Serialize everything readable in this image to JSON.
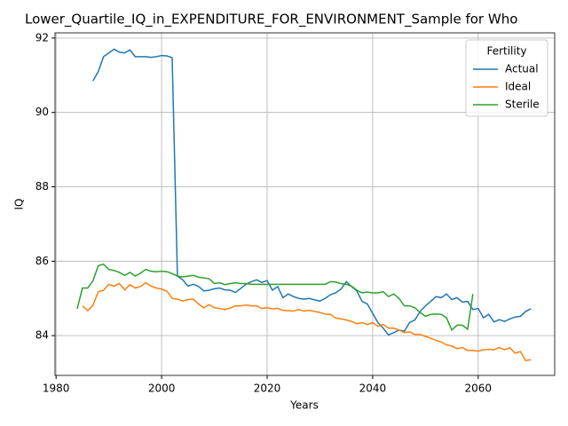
{
  "chart_data": {
    "type": "line",
    "title": "Lower_Quartile_IQ_in_EXPENDITURE_FOR_ENVIRONMENT_Sample for Who",
    "x_label": "Years",
    "y_label": "IQ",
    "x": [
      1984,
      1985,
      1986,
      1987,
      1988,
      1989,
      1990,
      1991,
      1992,
      1993,
      1994,
      1995,
      1996,
      1997,
      1998,
      1999,
      2000,
      2001,
      2002,
      2003,
      2004,
      2005,
      2006,
      2007,
      2008,
      2009,
      2010,
      2011,
      2012,
      2013,
      2014,
      2015,
      2016,
      2017,
      2018,
      2019,
      2020,
      2021,
      2022,
      2023,
      2024,
      2025,
      2026,
      2027,
      2028,
      2029,
      2030,
      2031,
      2032,
      2033,
      2034,
      2035,
      2036,
      2037,
      2038,
      2039,
      2040,
      2041,
      2042,
      2043,
      2044,
      2045,
      2046,
      2047,
      2048,
      2049,
      2050,
      2051,
      2052,
      2053,
      2054,
      2055,
      2056,
      2057,
      2058,
      2059,
      2060,
      2061,
      2062,
      2063,
      2064,
      2065,
      2066,
      2067,
      2068,
      2069,
      2070
    ],
    "series": [
      {
        "name": "Actual",
        "color": "#1f77b4",
        "values": [
          null,
          null,
          null,
          90.85,
          91.1,
          91.5,
          91.6,
          91.7,
          91.62,
          91.6,
          91.68,
          91.5,
          91.5,
          91.5,
          91.48,
          91.5,
          91.53,
          91.52,
          91.47,
          85.6,
          85.5,
          85.33,
          85.38,
          85.32,
          85.2,
          85.22,
          85.26,
          85.28,
          85.23,
          85.22,
          85.16,
          85.27,
          85.38,
          85.45,
          85.5,
          85.43,
          85.48,
          85.22,
          85.32,
          85.02,
          85.12,
          85.05,
          85.0,
          84.98,
          85.0,
          84.96,
          84.93,
          85.0,
          85.1,
          85.15,
          85.25,
          85.45,
          85.32,
          85.2,
          84.92,
          84.85,
          84.6,
          84.35,
          84.2,
          84.02,
          84.08,
          84.15,
          84.12,
          84.35,
          84.42,
          84.65,
          84.8,
          84.92,
          85.05,
          85.02,
          85.12,
          84.97,
          85.02,
          84.9,
          84.92,
          84.7,
          84.73,
          84.48,
          84.57,
          84.37,
          84.43,
          84.38,
          84.45,
          84.5,
          84.52,
          84.65,
          84.72
        ]
      },
      {
        "name": "Ideal",
        "color": "#ff7f0e",
        "values": [
          null,
          84.8,
          84.67,
          84.82,
          85.18,
          85.22,
          85.38,
          85.33,
          85.4,
          85.23,
          85.37,
          85.28,
          85.32,
          85.42,
          85.33,
          85.28,
          85.25,
          85.2,
          85.0,
          84.98,
          84.93,
          84.97,
          84.98,
          84.85,
          84.75,
          84.83,
          84.75,
          84.73,
          84.7,
          84.74,
          84.8,
          84.8,
          84.82,
          84.8,
          84.8,
          84.73,
          84.75,
          84.72,
          84.73,
          84.68,
          84.67,
          84.66,
          84.7,
          84.66,
          84.68,
          84.65,
          84.62,
          84.58,
          84.57,
          84.47,
          84.45,
          84.42,
          84.38,
          84.32,
          84.35,
          84.3,
          84.35,
          84.25,
          84.3,
          84.2,
          84.2,
          84.15,
          84.08,
          84.1,
          84.03,
          84.03,
          83.98,
          83.93,
          83.87,
          83.83,
          83.75,
          83.72,
          83.65,
          83.68,
          83.6,
          83.6,
          83.58,
          83.62,
          83.63,
          83.62,
          83.68,
          83.62,
          83.67,
          83.53,
          83.57,
          83.33,
          83.35
        ]
      },
      {
        "name": "Sterile",
        "color": "#2ca02c",
        "values": [
          84.72,
          85.28,
          85.28,
          85.48,
          85.88,
          85.92,
          85.78,
          85.75,
          85.7,
          85.62,
          85.7,
          85.6,
          85.68,
          85.78,
          85.73,
          85.72,
          85.73,
          85.72,
          85.67,
          85.6,
          85.58,
          85.6,
          85.62,
          85.57,
          85.55,
          85.53,
          85.4,
          85.42,
          85.37,
          85.4,
          85.42,
          85.4,
          85.4,
          85.38,
          85.38,
          85.38,
          85.38,
          85.38,
          85.38,
          85.38,
          85.38,
          85.38,
          85.38,
          85.38,
          85.38,
          85.38,
          85.38,
          85.38,
          85.45,
          85.44,
          85.4,
          85.38,
          85.33,
          85.22,
          85.15,
          85.17,
          85.15,
          85.15,
          85.18,
          85.05,
          85.12,
          85.0,
          84.8,
          84.8,
          84.75,
          84.62,
          84.52,
          84.57,
          84.58,
          84.57,
          84.48,
          84.15,
          84.28,
          84.28,
          84.17,
          85.12,
          null,
          null,
          null,
          null,
          null,
          null,
          null,
          null,
          null,
          null,
          null
        ]
      }
    ],
    "xlim": [
      1979.8,
      2074.5
    ],
    "ylim": [
      82.93,
      92.14
    ],
    "xticks": [
      1980,
      2000,
      2020,
      2040,
      2060
    ],
    "yticks": [
      84,
      86,
      88,
      90,
      92
    ],
    "grid": true,
    "legend_title": "Fertility",
    "legend_position": "upper right"
  }
}
